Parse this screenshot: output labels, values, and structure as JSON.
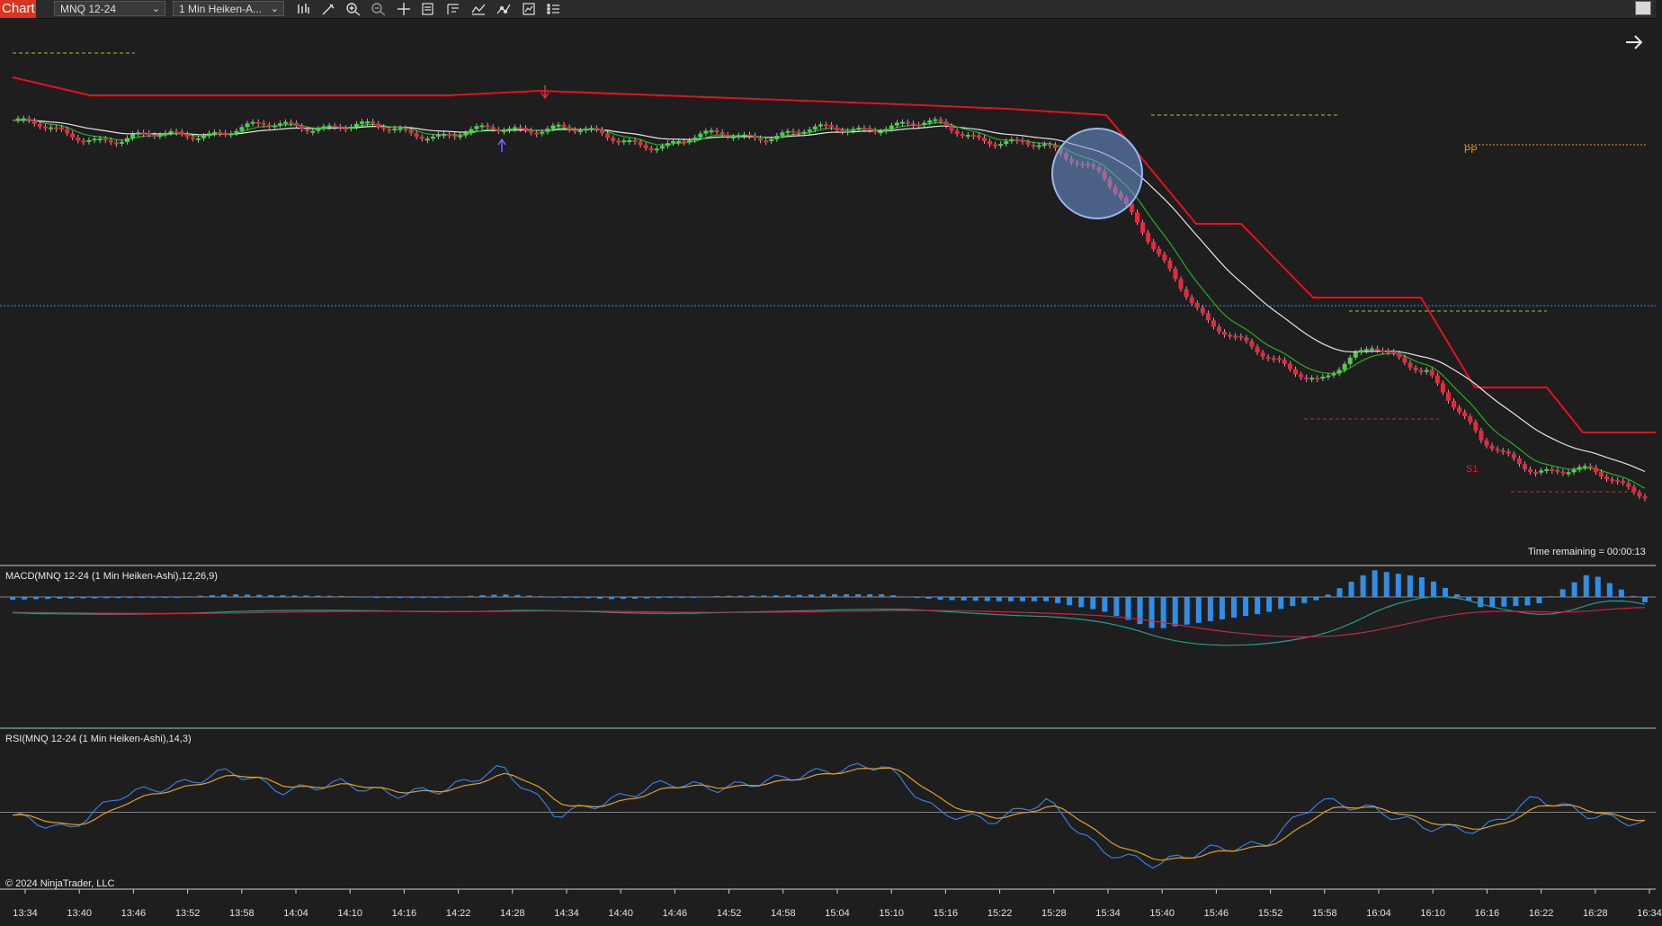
{
  "toolbar": {
    "tab_label": "Chart",
    "instrument": "MNQ 12-24",
    "bar_type": "1 Min Heiken-A...",
    "icons": [
      "bar-style-icon",
      "drawing-tool-icon",
      "zoom-in-icon",
      "zoom-out-icon",
      "crosshair-icon",
      "properties-icon",
      "templates-icon",
      "indicators-icon",
      "strategies-icon",
      "chart-trader-icon",
      "data-box-icon"
    ]
  },
  "panels": {
    "price_label_pp": "PP",
    "price_label_s1": "S1",
    "time_remaining": "Time remaining = 00:00:13",
    "macd_title": "MACD(MNQ 12-24 (1 Min Heiken-Ashi),12,26,9)",
    "rsi_title": "RSI(MNQ 12-24 (1 Min Heiken-Ashi),14,3)",
    "copyright": "© 2024 NinjaTrader, LLC"
  },
  "colors": {
    "background": "#1e1e1e",
    "up_candle": "#3fd93f",
    "down_candle": "#e8283c",
    "stop_line": "#e3121e",
    "ema_fast": "#22b022",
    "ema_slow": "#e6e6e6",
    "macd_hist": "#2f8fe8",
    "macd_line": "#1f9e96",
    "macd_signal": "#c4283e",
    "rsi_line": "#3a7be0",
    "rsi_signal": "#e0a020",
    "pivot": "#e0a020",
    "highlight": "#6f97d8"
  },
  "chart_data": {
    "type": "candlestick",
    "bar_type": "1 Min Heiken-Ashi",
    "instrument": "MNQ 12-24",
    "x_tick_labels": [
      "13:34",
      "13:40",
      "13:46",
      "13:52",
      "13:58",
      "14:04",
      "14:10",
      "14:16",
      "14:22",
      "14:28",
      "14:34",
      "14:40",
      "14:46",
      "14:52",
      "14:58",
      "15:04",
      "15:10",
      "15:16",
      "15:22",
      "15:28",
      "15:34",
      "15:40",
      "15:46",
      "15:52",
      "15:58",
      "16:04",
      "16:10",
      "16:16",
      "16:22",
      "16:28",
      "16:34"
    ],
    "price_trend": [
      0.9,
      0.87,
      0.86,
      0.87,
      0.88,
      0.89,
      0.89,
      0.88,
      0.87,
      0.88,
      0.89,
      0.86,
      0.85,
      0.87,
      0.87,
      0.88,
      0.89,
      0.89,
      0.86,
      0.84,
      0.8,
      0.62,
      0.48,
      0.4,
      0.36,
      0.42,
      0.38,
      0.22,
      0.17,
      0.16,
      0.12
    ],
    "macd_histogram": [
      -0.05,
      -0.03,
      -0.02,
      0.0,
      0.05,
      0.03,
      0.02,
      -0.01,
      0.0,
      0.05,
      0.0,
      -0.04,
      -0.02,
      0.02,
      0.03,
      0.05,
      0.05,
      -0.05,
      -0.08,
      -0.08,
      -0.25,
      -0.6,
      -0.45,
      -0.3,
      -0.05,
      0.5,
      0.35,
      -0.2,
      -0.15,
      0.45,
      -0.1
    ],
    "rsi": [
      48,
      38,
      62,
      68,
      78,
      64,
      70,
      62,
      66,
      80,
      48,
      58,
      70,
      66,
      72,
      78,
      82,
      50,
      44,
      58,
      24,
      15,
      25,
      28,
      58,
      52,
      40,
      38,
      60,
      48,
      42
    ],
    "rsi_reference": 50,
    "annotations": [
      "PP",
      "S1"
    ],
    "grid": false
  }
}
